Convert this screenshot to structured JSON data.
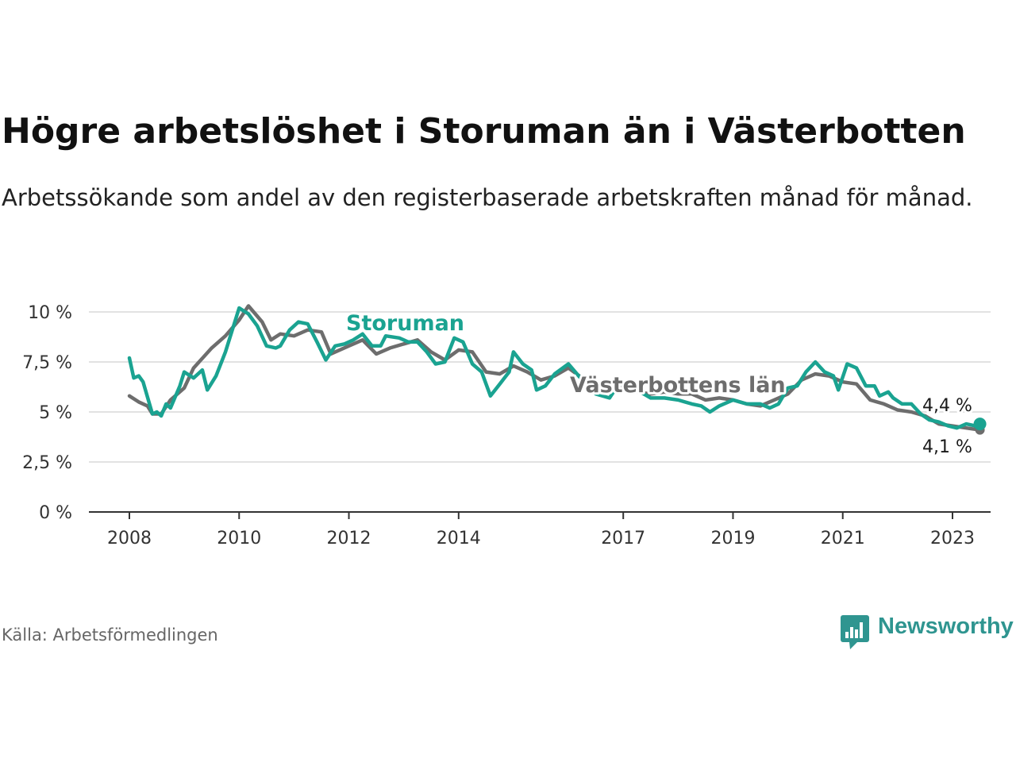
{
  "title": "Högre arbetslöshet i Storuman än i Västerbotten",
  "subtitle": "Arbetssökande som andel av den registerbaserade arbetskraften månad för månad.",
  "source": "Källa: Arbetsförmedlingen",
  "brand": {
    "name": "Newsworthy",
    "color": "#2f9590"
  },
  "chart_data": {
    "type": "line",
    "ylim": [
      0,
      10.5
    ],
    "yticks": [
      0,
      2.5,
      5,
      7.5,
      10
    ],
    "ytick_labels": [
      "0 %",
      "2,5 %",
      "5 %",
      "7,5 %",
      "10 %"
    ],
    "xlim": [
      2007.8,
      2023.75
    ],
    "xticks": [
      2008,
      2010,
      2012,
      2014,
      2017,
      2019,
      2021,
      2023
    ],
    "xtick_labels": [
      "2008",
      "2010",
      "2012",
      "2014",
      "2017",
      "2019",
      "2021",
      "2023"
    ],
    "grid": true,
    "series": [
      {
        "name": "Västerbottens län",
        "color": "#6d6d6d",
        "label": "Västerbottens län",
        "end_label": "4,1 %",
        "points": [
          [
            2008.0,
            5.8
          ],
          [
            2008.17,
            5.5
          ],
          [
            2008.33,
            5.3
          ],
          [
            2008.42,
            4.9
          ],
          [
            2008.58,
            4.9
          ],
          [
            2008.75,
            5.6
          ],
          [
            2009.0,
            6.2
          ],
          [
            2009.17,
            7.2
          ],
          [
            2009.5,
            8.2
          ],
          [
            2009.75,
            8.8
          ],
          [
            2010.0,
            9.6
          ],
          [
            2010.17,
            10.3
          ],
          [
            2010.42,
            9.5
          ],
          [
            2010.58,
            8.6
          ],
          [
            2010.75,
            8.9
          ],
          [
            2011.0,
            8.8
          ],
          [
            2011.25,
            9.1
          ],
          [
            2011.5,
            9.0
          ],
          [
            2011.67,
            7.9
          ],
          [
            2012.0,
            8.3
          ],
          [
            2012.25,
            8.6
          ],
          [
            2012.5,
            7.9
          ],
          [
            2012.75,
            8.2
          ],
          [
            2013.0,
            8.4
          ],
          [
            2013.25,
            8.6
          ],
          [
            2013.5,
            8.0
          ],
          [
            2013.75,
            7.6
          ],
          [
            2014.0,
            8.1
          ],
          [
            2014.25,
            8.0
          ],
          [
            2014.5,
            7.0
          ],
          [
            2014.75,
            6.9
          ],
          [
            2015.0,
            7.3
          ],
          [
            2015.25,
            7.0
          ],
          [
            2015.5,
            6.6
          ],
          [
            2015.75,
            6.8
          ],
          [
            2016.0,
            7.2
          ],
          [
            2016.25,
            6.7
          ],
          [
            2016.5,
            6.3
          ],
          [
            2016.75,
            6.2
          ],
          [
            2017.0,
            6.2
          ],
          [
            2017.25,
            6.0
          ],
          [
            2017.5,
            5.9
          ],
          [
            2017.75,
            6.0
          ],
          [
            2018.0,
            5.9
          ],
          [
            2018.25,
            5.9
          ],
          [
            2018.5,
            5.6
          ],
          [
            2018.75,
            5.7
          ],
          [
            2019.0,
            5.6
          ],
          [
            2019.25,
            5.4
          ],
          [
            2019.5,
            5.3
          ],
          [
            2019.75,
            5.6
          ],
          [
            2020.0,
            5.9
          ],
          [
            2020.25,
            6.6
          ],
          [
            2020.5,
            6.9
          ],
          [
            2020.75,
            6.8
          ],
          [
            2021.0,
            6.5
          ],
          [
            2021.25,
            6.4
          ],
          [
            2021.5,
            5.6
          ],
          [
            2021.75,
            5.4
          ],
          [
            2022.0,
            5.1
          ],
          [
            2022.25,
            5.0
          ],
          [
            2022.5,
            4.8
          ],
          [
            2022.75,
            4.4
          ],
          [
            2023.0,
            4.3
          ],
          [
            2023.25,
            4.2
          ],
          [
            2023.5,
            4.1
          ]
        ]
      },
      {
        "name": "Storuman",
        "color": "#1aa391",
        "label": "Storuman",
        "end_label": "4,4 %",
        "points": [
          [
            2008.0,
            7.7
          ],
          [
            2008.08,
            6.7
          ],
          [
            2008.17,
            6.8
          ],
          [
            2008.25,
            6.5
          ],
          [
            2008.42,
            4.9
          ],
          [
            2008.5,
            5.0
          ],
          [
            2008.58,
            4.8
          ],
          [
            2008.67,
            5.4
          ],
          [
            2008.75,
            5.2
          ],
          [
            2008.92,
            6.3
          ],
          [
            2009.0,
            7.0
          ],
          [
            2009.17,
            6.7
          ],
          [
            2009.33,
            7.1
          ],
          [
            2009.42,
            6.1
          ],
          [
            2009.58,
            6.8
          ],
          [
            2009.75,
            8.0
          ],
          [
            2010.0,
            10.2
          ],
          [
            2010.17,
            9.9
          ],
          [
            2010.33,
            9.3
          ],
          [
            2010.5,
            8.3
          ],
          [
            2010.67,
            8.2
          ],
          [
            2010.75,
            8.3
          ],
          [
            2010.92,
            9.1
          ],
          [
            2011.08,
            9.5
          ],
          [
            2011.25,
            9.4
          ],
          [
            2011.42,
            8.5
          ],
          [
            2011.58,
            7.6
          ],
          [
            2011.75,
            8.3
          ],
          [
            2011.92,
            8.4
          ],
          [
            2012.08,
            8.6
          ],
          [
            2012.25,
            8.9
          ],
          [
            2012.42,
            8.3
          ],
          [
            2012.58,
            8.3
          ],
          [
            2012.67,
            8.8
          ],
          [
            2012.92,
            8.7
          ],
          [
            2013.08,
            8.5
          ],
          [
            2013.25,
            8.5
          ],
          [
            2013.42,
            8.0
          ],
          [
            2013.58,
            7.4
          ],
          [
            2013.75,
            7.5
          ],
          [
            2013.92,
            8.7
          ],
          [
            2014.08,
            8.5
          ],
          [
            2014.25,
            7.4
          ],
          [
            2014.42,
            7.0
          ],
          [
            2014.58,
            5.8
          ],
          [
            2014.75,
            6.4
          ],
          [
            2014.92,
            7.0
          ],
          [
            2015.0,
            8.0
          ],
          [
            2015.17,
            7.4
          ],
          [
            2015.33,
            7.1
          ],
          [
            2015.42,
            6.1
          ],
          [
            2015.58,
            6.3
          ],
          [
            2015.75,
            6.9
          ],
          [
            2016.0,
            7.4
          ],
          [
            2016.25,
            6.6
          ],
          [
            2016.5,
            5.9
          ],
          [
            2016.75,
            5.7
          ],
          [
            2016.92,
            6.4
          ],
          [
            2017.08,
            6.4
          ],
          [
            2017.25,
            6.1
          ],
          [
            2017.5,
            5.7
          ],
          [
            2017.75,
            5.7
          ],
          [
            2018.0,
            5.6
          ],
          [
            2018.25,
            5.4
          ],
          [
            2018.42,
            5.3
          ],
          [
            2018.58,
            5.0
          ],
          [
            2018.75,
            5.3
          ],
          [
            2019.0,
            5.6
          ],
          [
            2019.25,
            5.4
          ],
          [
            2019.5,
            5.4
          ],
          [
            2019.67,
            5.2
          ],
          [
            2019.83,
            5.4
          ],
          [
            2020.0,
            6.2
          ],
          [
            2020.17,
            6.3
          ],
          [
            2020.33,
            7.0
          ],
          [
            2020.5,
            7.5
          ],
          [
            2020.67,
            7.0
          ],
          [
            2020.83,
            6.8
          ],
          [
            2020.92,
            6.1
          ],
          [
            2021.08,
            7.4
          ],
          [
            2021.25,
            7.2
          ],
          [
            2021.42,
            6.3
          ],
          [
            2021.58,
            6.3
          ],
          [
            2021.67,
            5.8
          ],
          [
            2021.83,
            6.0
          ],
          [
            2021.92,
            5.7
          ],
          [
            2022.08,
            5.4
          ],
          [
            2022.25,
            5.4
          ],
          [
            2022.42,
            4.9
          ],
          [
            2022.58,
            4.6
          ],
          [
            2022.75,
            4.5
          ],
          [
            2022.92,
            4.3
          ],
          [
            2023.08,
            4.2
          ],
          [
            2023.25,
            4.4
          ],
          [
            2023.42,
            4.3
          ],
          [
            2023.5,
            4.4
          ]
        ]
      }
    ]
  }
}
